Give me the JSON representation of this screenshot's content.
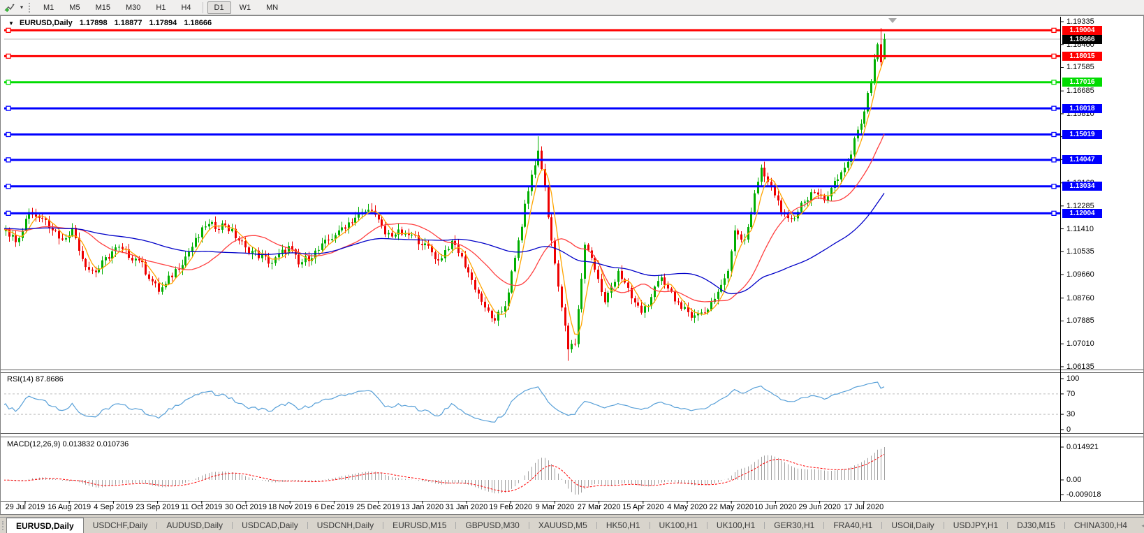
{
  "icons": {
    "collapse": "▼",
    "caret": "▾",
    "scroll_left": "◄",
    "scroll_right": "►"
  },
  "toolbar": {
    "tool_icon": "draw-cursor-icon",
    "timeframes": [
      "M1",
      "M5",
      "M15",
      "M30",
      "H1",
      "H4",
      "D1",
      "W1",
      "MN"
    ],
    "active_timeframe": "D1"
  },
  "chart_header": {
    "symbol": "EURUSD,Daily",
    "open": "1.17898",
    "high": "1.18877",
    "low": "1.17894",
    "close": "1.18666"
  },
  "colors": {
    "up": "#00AE00",
    "down": "#EE0000",
    "ma_fast": "#FFA500",
    "ma_mid": "#FF4040",
    "ma_slow": "#0000C8",
    "sr_red": "#FF0000",
    "sr_green": "#00DC00",
    "sr_blue": "#0000FF",
    "rsi_line": "#58A0D8",
    "macd_bar": "#A0A0A0",
    "macd_signal": "#FF0000",
    "price_line": "#BEBEBE",
    "current_tag_bg": "#000000"
  },
  "price_axis": {
    "ticks": [
      "1.19335",
      "1.18460",
      "1.17585",
      "1.16685",
      "1.15810",
      "1.14935",
      "1.14060",
      "1.13168",
      "1.12285",
      "1.11410",
      "1.10535",
      "1.09660",
      "1.08760",
      "1.07885",
      "1.07010",
      "1.06135"
    ]
  },
  "levels": [
    {
      "label": "1.19004",
      "price": 1.19004,
      "color": "#FF0000"
    },
    {
      "label": "1.18015",
      "price": 1.18015,
      "color": "#FF0000"
    },
    {
      "label": "1.17016",
      "price": 1.17016,
      "color": "#00DC00"
    },
    {
      "label": "1.16018",
      "price": 1.16018,
      "color": "#0000FF"
    },
    {
      "label": "1.15019",
      "price": 1.15019,
      "color": "#0000FF"
    },
    {
      "label": "1.14047",
      "price": 1.14047,
      "color": "#0000FF"
    },
    {
      "label": "1.13034",
      "price": 1.13034,
      "color": "#0000FF"
    },
    {
      "label": "1.12004",
      "price": 1.12004,
      "color": "#0000FF"
    }
  ],
  "current_price": {
    "label": "1.18666",
    "price": 1.18666
  },
  "rsi": {
    "label": "RSI(14) 87.8686",
    "value": "87.8686",
    "period": 14,
    "axis": [
      "100",
      "70",
      "30",
      "0"
    ],
    "dashed_levels": [
      70,
      30
    ]
  },
  "macd": {
    "label": "MACD(12,26,9) 0.013832 0.010736",
    "main": "0.013832",
    "signal_value": "0.010736",
    "params": [
      12,
      26,
      9
    ],
    "axis_max": "0.014921",
    "axis_zero": "0.00",
    "axis_min": "-0.009018"
  },
  "date_axis": [
    "29 Jul 2019",
    "16 Aug 2019",
    "4 Sep 2019",
    "23 Sep 2019",
    "11 Oct 2019",
    "30 Oct 2019",
    "18 Nov 2019",
    "6 Dec 2019",
    "25 Dec 2019",
    "13 Jan 2020",
    "31 Jan 2020",
    "19 Feb 2020",
    "9 Mar 2020",
    "27 Mar 2020",
    "15 Apr 2020",
    "4 May 2020",
    "22 May 2020",
    "10 Jun 2020",
    "29 Jun 2020",
    "17 Jul 2020"
  ],
  "tabs": {
    "active_index": 0,
    "items": [
      "EURUSD,Daily",
      "USDCHF,Daily",
      "AUDUSD,Daily",
      "USDCAD,Daily",
      "USDCNH,Daily",
      "EURUSD,M15",
      "GBPUSD,M30",
      "XAUUSD,M5",
      "HK50,H1",
      "UK100,H1",
      "UK100,H1",
      "GER30,H1",
      "FRA40,H1",
      "USOil,Daily",
      "USDJPY,H1",
      "DJ30,M15",
      "CHINA300,H4"
    ]
  },
  "chart_data": {
    "type": "candlestick",
    "symbol": "EURUSD",
    "timeframe": "Daily",
    "visible_range": {
      "start": "29 Jul 2019",
      "end": "31 Jul 2020",
      "price_min": 1.06135,
      "price_max": 1.19335
    },
    "bar_count": 265,
    "close_anchors": [
      [
        0,
        1.1142
      ],
      [
        3,
        1.109
      ],
      [
        7,
        1.1205
      ],
      [
        12,
        1.1175
      ],
      [
        17,
        1.11
      ],
      [
        20,
        1.1145
      ],
      [
        24,
        1.0995
      ],
      [
        27,
        1.0975
      ],
      [
        33,
        1.107
      ],
      [
        40,
        1.102
      ],
      [
        46,
        1.09
      ],
      [
        48,
        1.093
      ],
      [
        54,
        1.1035
      ],
      [
        60,
        1.115
      ],
      [
        66,
        1.1155
      ],
      [
        72,
        1.107
      ],
      [
        80,
        1.101
      ],
      [
        85,
        1.1075
      ],
      [
        88,
        1.1005
      ],
      [
        94,
        1.106
      ],
      [
        100,
        1.1135
      ],
      [
        107,
        1.1205
      ],
      [
        110,
        1.121
      ],
      [
        114,
        1.112
      ],
      [
        120,
        1.1125
      ],
      [
        126,
        1.1085
      ],
      [
        130,
        1.102
      ],
      [
        134,
        1.1095
      ],
      [
        137,
        1.1035
      ],
      [
        140,
        1.0945
      ],
      [
        144,
        1.084
      ],
      [
        147,
        1.079
      ],
      [
        150,
        1.0845
      ],
      [
        153,
        1.103
      ],
      [
        157,
        1.1285
      ],
      [
        160,
        1.144
      ],
      [
        162,
        1.13
      ],
      [
        163,
        1.1185
      ],
      [
        166,
        1.092
      ],
      [
        169,
        1.068
      ],
      [
        171,
        1.07
      ],
      [
        174,
        1.108
      ],
      [
        176,
        1.103
      ],
      [
        180,
        1.086
      ],
      [
        184,
        1.098
      ],
      [
        188,
        1.0875
      ],
      [
        191,
        1.082
      ],
      [
        194,
        1.088
      ],
      [
        197,
        1.0955
      ],
      [
        200,
        1.09
      ],
      [
        203,
        1.0835
      ],
      [
        207,
        1.081
      ],
      [
        210,
        1.082
      ],
      [
        214,
        1.09
      ],
      [
        217,
        1.098
      ],
      [
        219,
        1.1135
      ],
      [
        222,
        1.11
      ],
      [
        227,
        1.1375
      ],
      [
        230,
        1.13
      ],
      [
        233,
        1.1205
      ],
      [
        236,
        1.118
      ],
      [
        240,
        1.1245
      ],
      [
        243,
        1.128
      ],
      [
        246,
        1.125
      ],
      [
        250,
        1.133
      ],
      [
        254,
        1.1425
      ],
      [
        256,
        1.152
      ],
      [
        258,
        1.159
      ],
      [
        260,
        1.1705
      ],
      [
        262,
        1.1847
      ]
    ],
    "extremes": {
      "110": {
        "high": 1.1239
      },
      "147": {
        "low": 1.0778
      },
      "160": {
        "high": 1.1495
      },
      "169": {
        "low": 1.0636
      }
    },
    "prev_candle": [
      1.1847,
      1.1909,
      1.1762,
      1.1778
    ],
    "last_candle": [
      1.17898,
      1.18877,
      1.17894,
      1.18666
    ],
    "support_resistance": [
      1.19004,
      1.18015,
      1.17016,
      1.16018,
      1.15019,
      1.14047,
      1.13034,
      1.12004
    ],
    "moving_averages": [
      {
        "period": 5,
        "color": "#FFA500"
      },
      {
        "period": 20,
        "color": "#FF4040"
      },
      {
        "period": 55,
        "color": "#0000C8"
      }
    ],
    "rsi": {
      "period": 14,
      "last": 87.8686
    },
    "macd": {
      "fast": 12,
      "slow": 26,
      "signal": 9,
      "last_main": 0.013832,
      "last_signal": 0.010736,
      "scale_max": 0.014921,
      "scale_min": -0.009018
    }
  }
}
